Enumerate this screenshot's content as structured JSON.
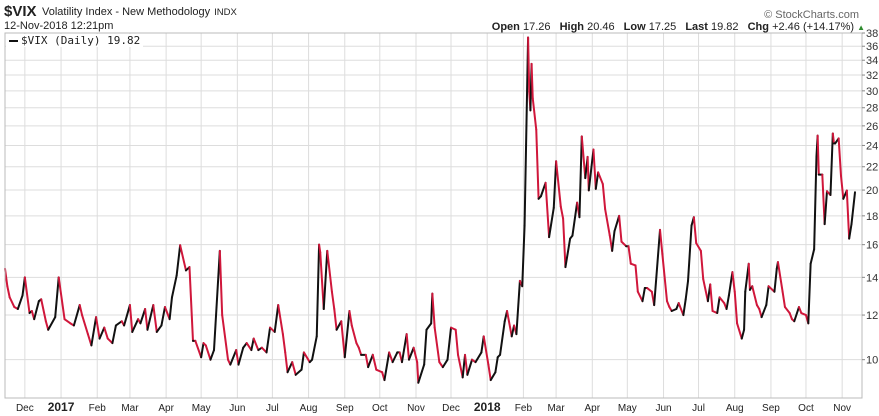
{
  "header": {
    "symbol": "$VIX",
    "name": "Volatility Index - New Methodology",
    "exchange": "INDX",
    "date": "12-Nov-2018 12:21pm",
    "brand": "© StockCharts.com",
    "open_label": "Open",
    "open": "17.26",
    "high_label": "High",
    "high": "20.46",
    "low_label": "Low",
    "low": "17.25",
    "last_label": "Last",
    "last": "19.82",
    "chg_label": "Chg",
    "chg": "+2.46 (+14.17%)",
    "chg_arrow": "▲"
  },
  "legend": {
    "text": "$VIX (Daily) 19.82"
  },
  "colors": {
    "up": "#111111",
    "down": "#d0173b",
    "grid": "#dddddd",
    "arrow": "#2e8b2e"
  },
  "chart_data": {
    "type": "line",
    "scale": "log",
    "grid": true,
    "legend": "top-left",
    "ylim": [
      8.55,
      38
    ],
    "yticks": [
      10,
      12,
      14,
      16,
      18,
      20,
      22,
      24,
      26,
      28,
      30,
      32,
      34,
      36,
      38
    ],
    "xlim": [
      "2016-11-14",
      "2018-11-12"
    ],
    "xticks": [
      {
        "date": "2016-12-01",
        "label": "Dec"
      },
      {
        "date": "2017-01-01",
        "label": "2017",
        "bold": true
      },
      {
        "date": "2017-02-01",
        "label": "Feb"
      },
      {
        "date": "2017-03-01",
        "label": "Mar"
      },
      {
        "date": "2017-04-01",
        "label": "Apr"
      },
      {
        "date": "2017-05-01",
        "label": "May"
      },
      {
        "date": "2017-06-01",
        "label": "Jun"
      },
      {
        "date": "2017-07-01",
        "label": "Jul"
      },
      {
        "date": "2017-08-01",
        "label": "Aug"
      },
      {
        "date": "2017-09-01",
        "label": "Sep"
      },
      {
        "date": "2017-10-01",
        "label": "Oct"
      },
      {
        "date": "2017-11-01",
        "label": "Nov"
      },
      {
        "date": "2017-12-01",
        "label": "Dec"
      },
      {
        "date": "2018-01-01",
        "label": "2018",
        "bold": true
      },
      {
        "date": "2018-02-01",
        "label": "Feb"
      },
      {
        "date": "2018-03-01",
        "label": "Mar"
      },
      {
        "date": "2018-04-01",
        "label": "Apr"
      },
      {
        "date": "2018-05-01",
        "label": "May"
      },
      {
        "date": "2018-06-01",
        "label": "Jun"
      },
      {
        "date": "2018-07-01",
        "label": "Jul"
      },
      {
        "date": "2018-08-01",
        "label": "Aug"
      },
      {
        "date": "2018-09-01",
        "label": "Sep"
      },
      {
        "date": "2018-10-01",
        "label": "Oct"
      },
      {
        "date": "2018-11-01",
        "label": "Nov"
      }
    ],
    "series": [
      {
        "name": "$VIX (Daily)",
        "points": [
          [
            "2016-11-14",
            14.5
          ],
          [
            "2016-11-16",
            13.5
          ],
          [
            "2016-11-18",
            12.9
          ],
          [
            "2016-11-22",
            12.4
          ],
          [
            "2016-11-25",
            12.3
          ],
          [
            "2016-11-29",
            13.0
          ],
          [
            "2016-12-01",
            14.0
          ],
          [
            "2016-12-05",
            12.1
          ],
          [
            "2016-12-07",
            12.2
          ],
          [
            "2016-12-09",
            11.8
          ],
          [
            "2016-12-13",
            12.7
          ],
          [
            "2016-12-15",
            12.8
          ],
          [
            "2016-12-19",
            11.7
          ],
          [
            "2016-12-21",
            11.3
          ],
          [
            "2016-12-27",
            11.9
          ],
          [
            "2016-12-30",
            14.0
          ],
          [
            "2017-01-04",
            11.8
          ],
          [
            "2017-01-09",
            11.6
          ],
          [
            "2017-01-12",
            11.5
          ],
          [
            "2017-01-17",
            12.5
          ],
          [
            "2017-01-19",
            12.0
          ],
          [
            "2017-01-24",
            11.1
          ],
          [
            "2017-01-27",
            10.6
          ],
          [
            "2017-01-31",
            11.9
          ],
          [
            "2017-02-03",
            10.9
          ],
          [
            "2017-02-07",
            11.4
          ],
          [
            "2017-02-10",
            10.9
          ],
          [
            "2017-02-14",
            10.7
          ],
          [
            "2017-02-17",
            11.5
          ],
          [
            "2017-02-22",
            11.7
          ],
          [
            "2017-02-24",
            11.5
          ],
          [
            "2017-03-01",
            12.5
          ],
          [
            "2017-03-03",
            11.2
          ],
          [
            "2017-03-08",
            11.8
          ],
          [
            "2017-03-10",
            11.6
          ],
          [
            "2017-03-14",
            12.3
          ],
          [
            "2017-03-16",
            11.3
          ],
          [
            "2017-03-21",
            12.5
          ],
          [
            "2017-03-24",
            11.2
          ],
          [
            "2017-03-28",
            11.5
          ],
          [
            "2017-03-31",
            12.4
          ],
          [
            "2017-04-04",
            11.8
          ],
          [
            "2017-04-06",
            12.9
          ],
          [
            "2017-04-10",
            14.1
          ],
          [
            "2017-04-13",
            15.96
          ],
          [
            "2017-04-18",
            14.4
          ],
          [
            "2017-04-21",
            14.6
          ],
          [
            "2017-04-24",
            10.8
          ],
          [
            "2017-04-26",
            10.8
          ],
          [
            "2017-05-01",
            10.1
          ],
          [
            "2017-05-03",
            10.7
          ],
          [
            "2017-05-05",
            10.6
          ],
          [
            "2017-05-09",
            10.0
          ],
          [
            "2017-05-12",
            10.4
          ],
          [
            "2017-05-17",
            15.6
          ],
          [
            "2017-05-19",
            12.0
          ],
          [
            "2017-05-24",
            10.0
          ],
          [
            "2017-05-26",
            9.8
          ],
          [
            "2017-05-31",
            10.4
          ],
          [
            "2017-06-02",
            9.8
          ],
          [
            "2017-06-06",
            10.5
          ],
          [
            "2017-06-09",
            10.7
          ],
          [
            "2017-06-13",
            10.4
          ],
          [
            "2017-06-15",
            10.9
          ],
          [
            "2017-06-19",
            10.4
          ],
          [
            "2017-06-22",
            10.5
          ],
          [
            "2017-06-26",
            10.3
          ],
          [
            "2017-06-29",
            11.4
          ],
          [
            "2017-07-03",
            11.2
          ],
          [
            "2017-07-06",
            12.5
          ],
          [
            "2017-07-10",
            11.1
          ],
          [
            "2017-07-12",
            10.3
          ],
          [
            "2017-07-14",
            9.5
          ],
          [
            "2017-07-18",
            9.9
          ],
          [
            "2017-07-21",
            9.4
          ],
          [
            "2017-07-26",
            9.6
          ],
          [
            "2017-07-28",
            10.3
          ],
          [
            "2017-08-02",
            9.9
          ],
          [
            "2017-08-04",
            10.0
          ],
          [
            "2017-08-08",
            11.0
          ],
          [
            "2017-08-10",
            16.0
          ],
          [
            "2017-08-11",
            15.5
          ],
          [
            "2017-08-14",
            12.3
          ],
          [
            "2017-08-17",
            15.6
          ],
          [
            "2017-08-21",
            13.2
          ],
          [
            "2017-08-23",
            12.3
          ],
          [
            "2017-08-25",
            11.3
          ],
          [
            "2017-08-29",
            11.7
          ],
          [
            "2017-09-01",
            10.1
          ],
          [
            "2017-09-05",
            12.2
          ],
          [
            "2017-09-07",
            11.5
          ],
          [
            "2017-09-11",
            10.7
          ],
          [
            "2017-09-13",
            10.5
          ],
          [
            "2017-09-15",
            10.2
          ],
          [
            "2017-09-19",
            10.2
          ],
          [
            "2017-09-21",
            9.7
          ],
          [
            "2017-09-25",
            10.2
          ],
          [
            "2017-09-28",
            9.6
          ],
          [
            "2017-10-03",
            9.5
          ],
          [
            "2017-10-05",
            9.2
          ],
          [
            "2017-10-09",
            10.3
          ],
          [
            "2017-10-12",
            9.9
          ],
          [
            "2017-10-16",
            10.3
          ],
          [
            "2017-10-18",
            10.3
          ],
          [
            "2017-10-20",
            9.9
          ],
          [
            "2017-10-24",
            11.1
          ],
          [
            "2017-10-26",
            10.0
          ],
          [
            "2017-10-30",
            10.5
          ],
          [
            "2017-11-02",
            9.9
          ],
          [
            "2017-11-03",
            9.1
          ],
          [
            "2017-11-08",
            9.8
          ],
          [
            "2017-11-10",
            11.3
          ],
          [
            "2017-11-14",
            11.6
          ],
          [
            "2017-11-15",
            13.1
          ],
          [
            "2017-11-17",
            11.4
          ],
          [
            "2017-11-21",
            9.9
          ],
          [
            "2017-11-24",
            9.7
          ],
          [
            "2017-11-28",
            10.0
          ],
          [
            "2017-12-01",
            11.4
          ],
          [
            "2017-12-05",
            11.3
          ],
          [
            "2017-12-07",
            10.2
          ],
          [
            "2017-12-11",
            9.3
          ],
          [
            "2017-12-13",
            10.2
          ],
          [
            "2017-12-15",
            9.4
          ],
          [
            "2017-12-19",
            10.0
          ],
          [
            "2017-12-22",
            9.9
          ],
          [
            "2017-12-27",
            10.3
          ],
          [
            "2017-12-29",
            11.0
          ],
          [
            "2018-01-02",
            9.8
          ],
          [
            "2018-01-04",
            9.2
          ],
          [
            "2018-01-08",
            9.5
          ],
          [
            "2018-01-10",
            10.1
          ],
          [
            "2018-01-12",
            10.2
          ],
          [
            "2018-01-16",
            11.7
          ],
          [
            "2018-01-18",
            12.2
          ],
          [
            "2018-01-22",
            11.0
          ],
          [
            "2018-01-24",
            11.5
          ],
          [
            "2018-01-26",
            11.1
          ],
          [
            "2018-01-29",
            13.8
          ],
          [
            "2018-01-31",
            13.5
          ],
          [
            "2018-02-02",
            17.3
          ],
          [
            "2018-02-05",
            37.3
          ],
          [
            "2018-02-06",
            29.9
          ],
          [
            "2018-02-07",
            27.7
          ],
          [
            "2018-02-08",
            33.5
          ],
          [
            "2018-02-09",
            29.1
          ],
          [
            "2018-02-12",
            25.6
          ],
          [
            "2018-02-14",
            19.3
          ],
          [
            "2018-02-16",
            19.5
          ],
          [
            "2018-02-20",
            20.6
          ],
          [
            "2018-02-23",
            16.5
          ],
          [
            "2018-02-27",
            18.6
          ],
          [
            "2018-03-01",
            22.5
          ],
          [
            "2018-03-05",
            18.7
          ],
          [
            "2018-03-07",
            17.8
          ],
          [
            "2018-03-09",
            14.6
          ],
          [
            "2018-03-13",
            16.4
          ],
          [
            "2018-03-15",
            16.6
          ],
          [
            "2018-03-19",
            19.0
          ],
          [
            "2018-03-21",
            17.9
          ],
          [
            "2018-03-23",
            24.9
          ],
          [
            "2018-03-26",
            21.0
          ],
          [
            "2018-03-28",
            22.9
          ],
          [
            "2018-03-29",
            19.97
          ],
          [
            "2018-04-02",
            23.6
          ],
          [
            "2018-04-04",
            20.1
          ],
          [
            "2018-04-06",
            21.5
          ],
          [
            "2018-04-10",
            20.5
          ],
          [
            "2018-04-12",
            18.5
          ],
          [
            "2018-04-16",
            16.6
          ],
          [
            "2018-04-18",
            15.6
          ],
          [
            "2018-04-20",
            16.9
          ],
          [
            "2018-04-24",
            18.0
          ],
          [
            "2018-04-26",
            16.2
          ],
          [
            "2018-04-30",
            15.9
          ],
          [
            "2018-05-02",
            15.9
          ],
          [
            "2018-05-04",
            14.8
          ],
          [
            "2018-05-08",
            14.7
          ],
          [
            "2018-05-10",
            13.2
          ],
          [
            "2018-05-14",
            12.7
          ],
          [
            "2018-05-16",
            13.4
          ],
          [
            "2018-05-18",
            13.4
          ],
          [
            "2018-05-22",
            13.2
          ],
          [
            "2018-05-24",
            12.5
          ],
          [
            "2018-05-29",
            17.0
          ],
          [
            "2018-05-31",
            15.4
          ],
          [
            "2018-06-04",
            12.7
          ],
          [
            "2018-06-06",
            12.4
          ],
          [
            "2018-06-08",
            12.2
          ],
          [
            "2018-06-12",
            12.3
          ],
          [
            "2018-06-14",
            12.6
          ],
          [
            "2018-06-18",
            12.0
          ],
          [
            "2018-06-20",
            12.8
          ],
          [
            "2018-06-22",
            13.8
          ],
          [
            "2018-06-25",
            17.3
          ],
          [
            "2018-06-27",
            17.9
          ],
          [
            "2018-06-29",
            16.1
          ],
          [
            "2018-07-03",
            15.6
          ],
          [
            "2018-07-05",
            13.9
          ],
          [
            "2018-07-09",
            12.7
          ],
          [
            "2018-07-11",
            13.6
          ],
          [
            "2018-07-13",
            12.2
          ],
          [
            "2018-07-17",
            12.1
          ],
          [
            "2018-07-19",
            12.9
          ],
          [
            "2018-07-23",
            12.6
          ],
          [
            "2018-07-25",
            12.3
          ],
          [
            "2018-07-27",
            13.0
          ],
          [
            "2018-07-30",
            14.3
          ],
          [
            "2018-08-01",
            13.2
          ],
          [
            "2018-08-03",
            11.6
          ],
          [
            "2018-08-07",
            10.9
          ],
          [
            "2018-08-09",
            11.3
          ],
          [
            "2018-08-10",
            13.2
          ],
          [
            "2018-08-13",
            14.8
          ],
          [
            "2018-08-14",
            13.3
          ],
          [
            "2018-08-16",
            13.5
          ],
          [
            "2018-08-20",
            12.5
          ],
          [
            "2018-08-22",
            12.3
          ],
          [
            "2018-08-24",
            11.9
          ],
          [
            "2018-08-28",
            12.5
          ],
          [
            "2018-08-30",
            13.5
          ],
          [
            "2018-09-04",
            13.2
          ],
          [
            "2018-09-06",
            14.5
          ],
          [
            "2018-09-07",
            14.9
          ],
          [
            "2018-09-11",
            13.2
          ],
          [
            "2018-09-13",
            12.4
          ],
          [
            "2018-09-17",
            12.1
          ],
          [
            "2018-09-19",
            11.8
          ],
          [
            "2018-09-21",
            11.7
          ],
          [
            "2018-09-25",
            12.4
          ],
          [
            "2018-09-27",
            12.1
          ],
          [
            "2018-10-01",
            12.0
          ],
          [
            "2018-10-03",
            11.6
          ],
          [
            "2018-10-05",
            14.8
          ],
          [
            "2018-10-08",
            15.7
          ],
          [
            "2018-10-10",
            22.96
          ],
          [
            "2018-10-11",
            24.98
          ],
          [
            "2018-10-12",
            21.3
          ],
          [
            "2018-10-15",
            21.3
          ],
          [
            "2018-10-17",
            17.4
          ],
          [
            "2018-10-19",
            19.9
          ],
          [
            "2018-10-22",
            19.6
          ],
          [
            "2018-10-24",
            25.2
          ],
          [
            "2018-10-25",
            24.2
          ],
          [
            "2018-10-26",
            24.2
          ],
          [
            "2018-10-29",
            24.7
          ],
          [
            "2018-10-31",
            21.2
          ],
          [
            "2018-11-02",
            19.3
          ],
          [
            "2018-11-05",
            19.96
          ],
          [
            "2018-11-07",
            16.4
          ],
          [
            "2018-11-09",
            17.4
          ],
          [
            "2018-11-12",
            19.82
          ]
        ]
      }
    ]
  }
}
